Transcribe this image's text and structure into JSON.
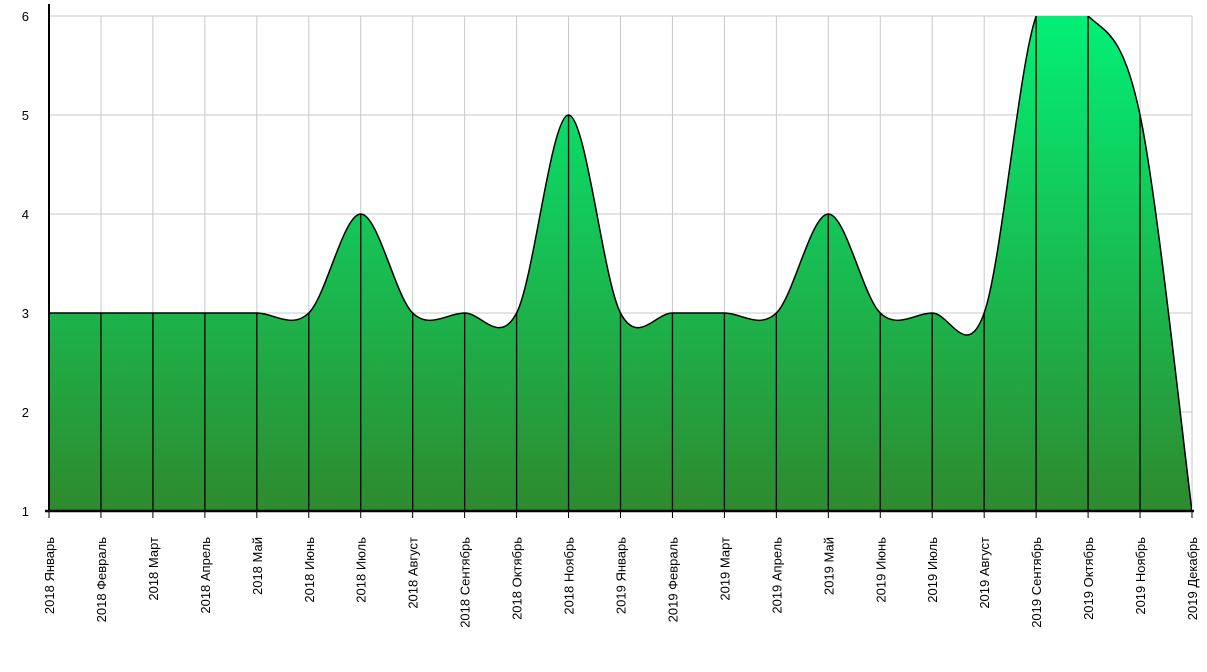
{
  "chart_data": {
    "type": "area",
    "title": "",
    "xlabel": "",
    "ylabel": "",
    "ylim": [
      1,
      6
    ],
    "yticks": [
      1,
      2,
      3,
      4,
      5,
      6
    ],
    "grid": true,
    "legend": "none",
    "fill_top_color": "#00f57a",
    "fill_bottom_color": "#2e8a2e",
    "line_color": "#000000",
    "grid_color": "#c8c8c8",
    "categories": [
      "2018 Январь",
      "2018 Февраль",
      "2018 Март",
      "2018 Апрель",
      "2018 Май",
      "2018 Июнь",
      "2018 Июль",
      "2018 Август",
      "2018 Сентябрь",
      "2018 Октябрь",
      "2018 Ноябрь",
      "2019 Январь",
      "2019 Февраль",
      "2019 Март",
      "2019 Апрель",
      "2019 Май",
      "2019 Июнь",
      "2019 Июль",
      "2019 Август",
      "2019 Сентябрь",
      "2019 Октябрь",
      "2019 Ноябрь",
      "2019 Декабрь"
    ],
    "series": [
      {
        "values": [
          3,
          3,
          3,
          3,
          3,
          3,
          4,
          3,
          3,
          3,
          5,
          3,
          3,
          3,
          3,
          4,
          3,
          3,
          3,
          6,
          6,
          5,
          1
        ]
      }
    ]
  }
}
